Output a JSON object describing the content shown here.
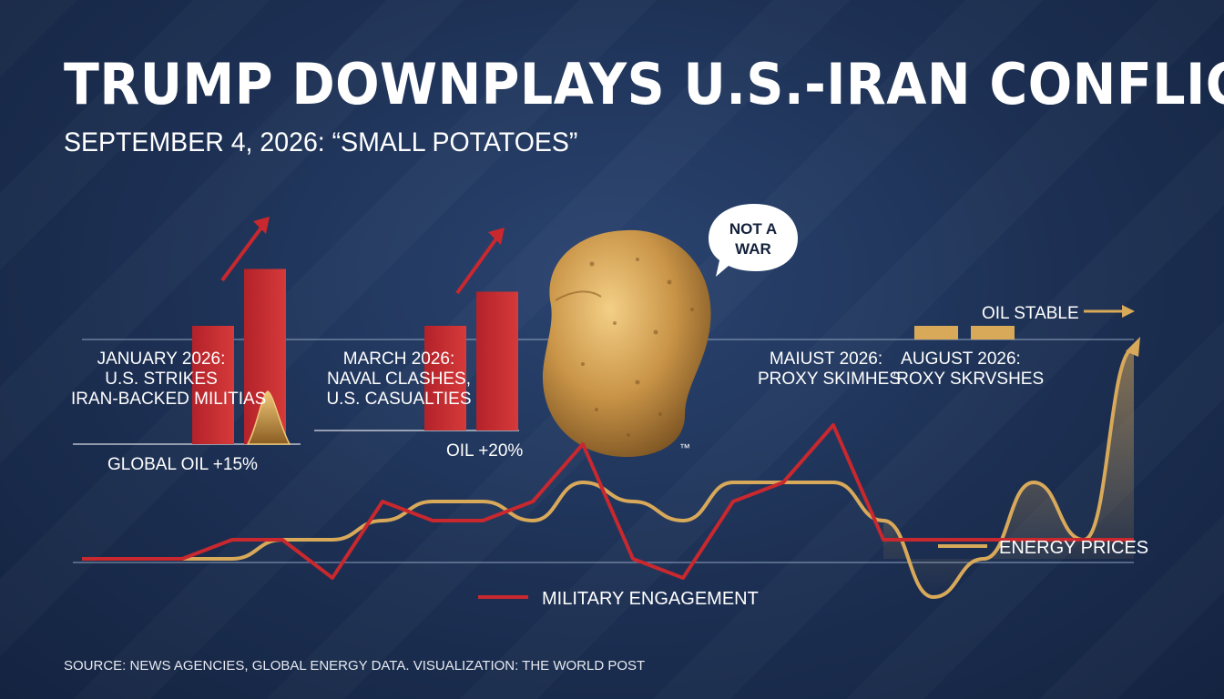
{
  "title": "TRUMP DOWNPLAYS U.S.-IRAN CONFLICT",
  "subtitle": "SEPTEMBER 4, 2026: “SMALL POTATOES”",
  "speech_bubble": [
    "NOT A",
    "WAR"
  ],
  "trademark": "™",
  "events": [
    {
      "lines": [
        "JANUARY 2026:",
        "U.S. STRIKES",
        "IRAN-BACKED MILITIAS"
      ]
    },
    {
      "lines": [
        "MARCH 2026:",
        "NAVAL CLASHES,",
        "U.S. CASUALTIES"
      ]
    },
    {
      "lines": [
        "MAIUST 2026:",
        "PROXY SKIMHES"
      ]
    },
    {
      "lines": [
        "AUGUST 2026:",
        "’ROXY SKRVSHES"
      ]
    }
  ],
  "oil_labels": {
    "jan": "GLOBAL OIL +15%",
    "mar": "OIL +20%",
    "aug": "OIL STABLE"
  },
  "legend": {
    "energy": "ENERGY PRICES",
    "military": "MILITARY ENGAGEMENT"
  },
  "source": "SOURCE: NEWS AGENCIES, GLOBAL ENERGY DATA. VISUALIZATION: THE WORLD POST",
  "colors": {
    "military": "#c8282e",
    "energy": "#d9a95a",
    "background": "#1c2f52",
    "potato": "#c9944a"
  },
  "icons": [
    "trend-up-arrow-icon",
    "potato-illustration",
    "speech-bubble-icon",
    "arrow-right-icon"
  ],
  "chart_data": {
    "type": "line",
    "series": [
      {
        "name": "MILITARY ENGAGEMENT",
        "values": [
          0,
          0,
          0,
          1,
          1,
          -1,
          3,
          2,
          2,
          3,
          6,
          0,
          -1,
          3,
          4,
          7,
          1,
          1,
          1,
          1,
          1,
          1
        ]
      },
      {
        "name": "ENERGY PRICES",
        "values": [
          0,
          0,
          0,
          0,
          1,
          1,
          2,
          3,
          3,
          2,
          4,
          3,
          2,
          4,
          4,
          4,
          2,
          -2,
          0,
          4,
          1,
          11
        ]
      }
    ],
    "bars": [
      {
        "group": "JANUARY 2026",
        "values": [
          5.2,
          7.7
        ]
      },
      {
        "group": "MARCH 2026",
        "values": [
          4.6,
          6.1
        ]
      },
      {
        "group": "AUGUST 2026",
        "values": [
          0.6,
          0.6
        ]
      }
    ],
    "legend_position": "inline-right",
    "grid": false
  }
}
